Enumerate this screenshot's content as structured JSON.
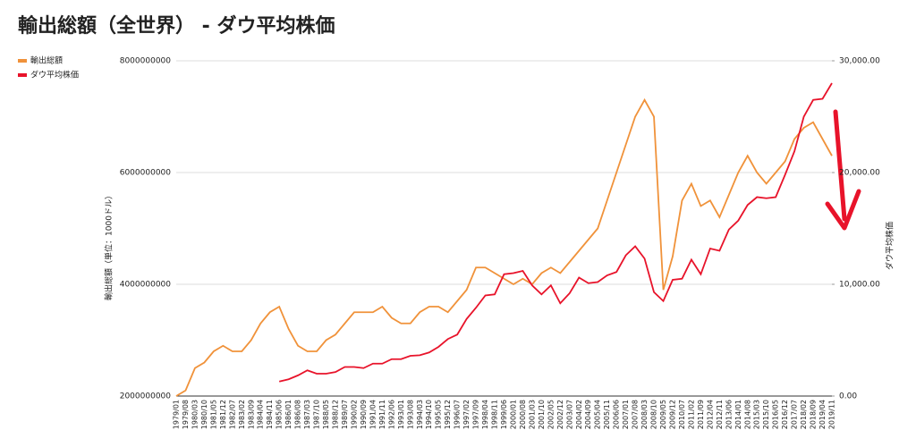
{
  "chart_data": {
    "type": "line",
    "title": "輸出総額（全世界） - ダウ平均株価",
    "ylabel": "輸出総額（単位：1000ドル）",
    "y2label": "ダウ平均株価",
    "legend": "top-left",
    "grid": true,
    "categories": [
      "1979/01",
      "1979/08",
      "1980/03",
      "1980/10",
      "1981/05",
      "1981/12",
      "1982/07",
      "1983/02",
      "1983/09",
      "1984/04",
      "1984/11",
      "1985/06",
      "1986/01",
      "1986/08",
      "1987/03",
      "1987/10",
      "1988/05",
      "1988/12",
      "1989/07",
      "1990/02",
      "1990/09",
      "1991/04",
      "1991/11",
      "1992/06",
      "1993/01",
      "1993/08",
      "1994/03",
      "1994/10",
      "1995/05",
      "1995/12",
      "1996/07",
      "1997/02",
      "1997/09",
      "1998/04",
      "1998/11",
      "1999/06",
      "2000/01",
      "2000/08",
      "2001/03",
      "2001/10",
      "2002/05",
      "2002/12",
      "2003/07",
      "2004/02",
      "2004/09",
      "2005/04",
      "2005/11",
      "2006/06",
      "2007/01",
      "2007/08",
      "2008/03",
      "2008/10",
      "2009/05",
      "2009/12",
      "2010/07",
      "2011/02",
      "2011/09",
      "2012/04",
      "2012/11",
      "2013/06",
      "2014/01",
      "2014/08",
      "2015/03",
      "2015/10",
      "2016/05",
      "2016/12",
      "2017/07",
      "2018/02",
      "2018/09",
      "2019/04",
      "2019/11"
    ],
    "ylim": [
      2000000000,
      8000000000
    ],
    "yticks": [
      2000000000,
      4000000000,
      6000000000,
      8000000000
    ],
    "y2lim": [
      0,
      30000
    ],
    "y2ticks": [
      {
        "value": 0,
        "label": "0.00"
      },
      {
        "value": 10000,
        "label": "10,000.00"
      },
      {
        "value": 20000,
        "label": "20,000.00"
      },
      {
        "value": 30000,
        "label": "30,000.00"
      }
    ],
    "series": [
      {
        "name": "輸出総額",
        "color": "#f0923a",
        "values": [
          2000000000,
          2100000000,
          2500000000,
          2600000000,
          2800000000,
          2900000000,
          2800000000,
          2800000000,
          3000000000,
          3300000000,
          3500000000,
          3600000000,
          3200000000,
          2900000000,
          2800000000,
          2800000000,
          3000000000,
          3100000000,
          3300000000,
          3500000000,
          3500000000,
          3500000000,
          3600000000,
          3400000000,
          3300000000,
          3300000000,
          3500000000,
          3600000000,
          3600000000,
          3500000000,
          3700000000,
          3900000000,
          4300000000,
          4300000000,
          4200000000,
          4100000000,
          4000000000,
          4100000000,
          4000000000,
          4200000000,
          4300000000,
          4200000000,
          4400000000,
          4600000000,
          4800000000,
          5000000000,
          5500000000,
          6000000000,
          6500000000,
          7000000000,
          7300000000,
          7000000000,
          3900000000,
          4500000000,
          5500000000,
          5800000000,
          5400000000,
          5500000000,
          5200000000,
          5600000000,
          6000000000,
          6300000000,
          6000000000,
          5800000000,
          6000000000,
          6200000000,
          6600000000,
          6800000000,
          6900000000,
          6600000000,
          6300000000
        ]
      },
      {
        "name": "ダウ平均株価",
        "color": "#e8132a",
        "axis": "y2",
        "values": [
          null,
          null,
          null,
          null,
          null,
          null,
          null,
          null,
          null,
          null,
          null,
          1300,
          1500,
          1850,
          2300,
          2000,
          2000,
          2150,
          2600,
          2600,
          2500,
          2900,
          2900,
          3300,
          3300,
          3600,
          3650,
          3900,
          4400,
          5100,
          5500,
          6900,
          7900,
          9000,
          9100,
          10900,
          11000,
          11200,
          9900,
          9100,
          9900,
          8300,
          9200,
          10600,
          10100,
          10200,
          10800,
          11100,
          12600,
          13400,
          12300,
          9300,
          8500,
          10400,
          10500,
          12200,
          10900,
          13200,
          13000,
          14900,
          15700,
          17100,
          17800,
          17700,
          17800,
          19800,
          21900,
          25000,
          26500,
          26600,
          28000
        ]
      }
    ]
  }
}
